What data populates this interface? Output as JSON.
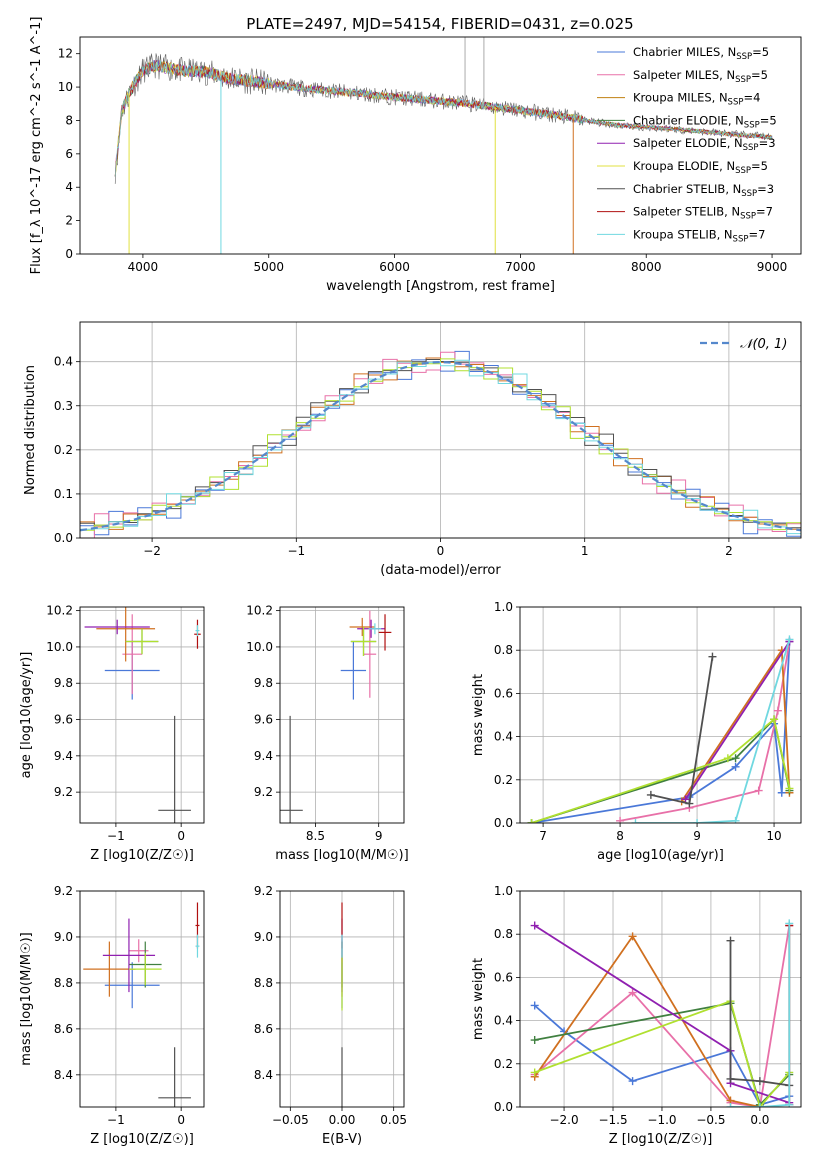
{
  "chart_data": [
    {
      "id": "spectrum",
      "type": "line",
      "title": "PLATE=2497, MJD=54154, FIBERID=0431, z=0.025",
      "xlabel": "wavelength [Angstrom, rest frame]",
      "ylabel": "Flux [f_λ 10^-17 erg cm^-2 s^-1 A^-1]",
      "xlim": [
        3500,
        9230
      ],
      "ylim": [
        0,
        13
      ],
      "xticks": [
        4000,
        5000,
        6000,
        7000,
        8000,
        9000
      ],
      "yticks": [
        0,
        2,
        4,
        6,
        8,
        10,
        12
      ],
      "legend_position": "top-right",
      "legend": [
        {
          "base": "Chabrier MILES, N",
          "sub": "SSP",
          "tail": "=5",
          "color": "#4a78d8"
        },
        {
          "base": "Salpeter MILES, N",
          "sub": "SSP",
          "tail": "=5",
          "color": "#e870a8"
        },
        {
          "base": "Kroupa MILES, N",
          "sub": "SSP",
          "tail": "=4",
          "color": "#c08010"
        },
        {
          "base": "Chabrier ELODIE, N",
          "sub": "SSP",
          "tail": "=5",
          "color": "#408040"
        },
        {
          "base": "Salpeter ELODIE, N",
          "sub": "SSP",
          "tail": "=3",
          "color": "#9020b0"
        },
        {
          "base": "Kroupa ELODIE, N",
          "sub": "SSP",
          "tail": "=5",
          "color": "#e0e040"
        },
        {
          "base": "Chabrier STELIB, N",
          "sub": "SSP",
          "tail": "=3",
          "color": "#505050"
        },
        {
          "base": "Salpeter STELIB, N",
          "sub": "SSP",
          "tail": "=7",
          "color": "#b01010"
        },
        {
          "base": "Kroupa STELIB, N",
          "sub": "SSP",
          "tail": "=7",
          "color": "#70d8e0"
        }
      ],
      "continuum": {
        "x": [
          3800,
          3900,
          4000,
          4100,
          4300,
          4500,
          4700,
          5000,
          5300,
          5600,
          6000,
          6300,
          6600,
          7000,
          7300,
          7600,
          7800,
          8000,
          8200,
          8500,
          8800,
          9000
        ],
        "y": [
          8.0,
          9.8,
          11.0,
          11.3,
          11.0,
          10.9,
          10.5,
          10.2,
          9.9,
          9.7,
          9.4,
          9.2,
          9.0,
          8.6,
          8.3,
          7.9,
          7.7,
          7.6,
          7.5,
          7.3,
          7.1,
          7.0
        ]
      },
      "features": [
        {
          "x": 4620,
          "y": 0.0,
          "color": "#70d8e0"
        },
        {
          "x": 3890,
          "y": 0.0,
          "color": "#e0e040"
        },
        {
          "x": 6800,
          "y": 0.0,
          "color": "#e0e040"
        },
        {
          "x": 7420,
          "y": 0.0,
          "color": "#d07020"
        },
        {
          "x": 6710,
          "y": 13.0,
          "color": "#aaaaaa"
        },
        {
          "x": 6560,
          "y": 13.0,
          "color": "#aaaaaa"
        }
      ]
    },
    {
      "id": "residuals",
      "type": "bar",
      "xlabel": "(data-model)/error",
      "ylabel": "Normed distribution",
      "xlim": [
        -2.5,
        2.5
      ],
      "ylim": [
        0,
        0.49
      ],
      "xticks": [
        -2,
        -1,
        0,
        1,
        2
      ],
      "yticks": [
        0.0,
        0.1,
        0.2,
        0.3,
        0.4
      ],
      "bin_width": 0.1,
      "legend_label": "𝒩(0, 1)",
      "series": [
        {
          "color": "#4a78d8",
          "offsets": [
            0.01,
            -0.02,
            0.03,
            -0.01,
            0.02,
            0.0,
            -0.03,
            0.01
          ]
        },
        {
          "color": "#e870a8",
          "offsets": [
            -0.02,
            0.03,
            0.0,
            0.02,
            -0.01,
            0.03,
            0.01,
            -0.02
          ]
        },
        {
          "color": "#d07020",
          "offsets": [
            0.02,
            0.0,
            -0.02,
            0.03,
            0.01,
            -0.02,
            0.02,
            0.0
          ]
        },
        {
          "color": "#505050",
          "offsets": [
            0.03,
            0.01,
            0.02,
            -0.02,
            0.03,
            0.01,
            -0.02,
            0.02
          ]
        },
        {
          "color": "#b0e030",
          "offsets": [
            -0.01,
            0.02,
            -0.03,
            0.0,
            -0.02,
            0.03,
            0.0,
            0.01
          ]
        },
        {
          "color": "#70d8e0",
          "offsets": [
            0.0,
            -0.01,
            0.01,
            -0.02,
            0.0,
            -0.01,
            0.03,
            -0.01
          ]
        }
      ]
    },
    {
      "id": "age_vs_Z",
      "type": "scatter",
      "xlabel": "Z [log10(Z/Z☉)]",
      "ylabel": "age  [log10(age/yr)]",
      "xlim": [
        -1.55,
        0.35
      ],
      "ylim": [
        9.03,
        10.22
      ],
      "xticks": [
        -1,
        0
      ],
      "yticks": [
        9.2,
        9.4,
        9.6,
        9.8,
        10.0,
        10.2
      ],
      "points": [
        {
          "x": -0.75,
          "y": 9.87,
          "xerr": 0.42,
          "yerr": 0.16,
          "color": "#4a78d8"
        },
        {
          "x": -0.75,
          "y": 9.96,
          "xerr": 0.15,
          "yerr": 0.22,
          "color": "#e870a8"
        },
        {
          "x": -0.85,
          "y": 10.1,
          "xerr": 0.45,
          "yerr": 0.18,
          "color": "#d07020"
        },
        {
          "x": -0.6,
          "y": 10.03,
          "xerr": 0.25,
          "yerr": 0.07,
          "color": "#408040"
        },
        {
          "x": -0.98,
          "y": 10.11,
          "xerr": 0.5,
          "yerr": 0.04,
          "color": "#9020b0"
        },
        {
          "x": -0.6,
          "y": 10.03,
          "xerr": 0.25,
          "yerr": 0.07,
          "color": "#b0e030"
        },
        {
          "x": -0.1,
          "y": 9.1,
          "xerr": 0.25,
          "yerr": 0.52,
          "color": "#505050"
        },
        {
          "x": 0.25,
          "y": 10.07,
          "xerr": 0.05,
          "yerr": 0.08,
          "color": "#b01010"
        },
        {
          "x": 0.25,
          "y": 10.09,
          "xerr": 0.03,
          "yerr": 0.03,
          "color": "#70d8e0"
        }
      ]
    },
    {
      "id": "age_vs_mass",
      "type": "scatter",
      "xlabel": "mass [log10(M/M☉)]",
      "ylabel": "",
      "xlim": [
        8.22,
        9.2
      ],
      "ylim": [
        9.03,
        10.22
      ],
      "xticks": [
        8.5,
        9.0
      ],
      "yticks": [
        9.2,
        9.4,
        9.6,
        9.8,
        10.0,
        10.2
      ],
      "points": [
        {
          "x": 8.8,
          "y": 9.87,
          "xerr": 0.1,
          "yerr": 0.16,
          "color": "#4a78d8"
        },
        {
          "x": 8.93,
          "y": 9.96,
          "xerr": 0.05,
          "yerr": 0.24,
          "color": "#e870a8"
        },
        {
          "x": 8.87,
          "y": 10.11,
          "xerr": 0.1,
          "yerr": 0.05,
          "color": "#d07020"
        },
        {
          "x": 8.88,
          "y": 10.03,
          "xerr": 0.1,
          "yerr": 0.08,
          "color": "#408040"
        },
        {
          "x": 8.94,
          "y": 10.1,
          "xerr": 0.11,
          "yerr": 0.05,
          "color": "#9020b0"
        },
        {
          "x": 8.88,
          "y": 10.03,
          "xerr": 0.1,
          "yerr": 0.08,
          "color": "#b0e030"
        },
        {
          "x": 8.3,
          "y": 9.1,
          "xerr": 0.1,
          "yerr": 0.52,
          "color": "#505050"
        },
        {
          "x": 9.05,
          "y": 10.08,
          "xerr": 0.05,
          "yerr": 0.1,
          "color": "#b01010"
        },
        {
          "x": 8.97,
          "y": 10.1,
          "xerr": 0.05,
          "yerr": 0.03,
          "color": "#70d8e0"
        }
      ]
    },
    {
      "id": "massweight_vs_age",
      "type": "line",
      "xlabel": "age  [log10(age/yr)]",
      "ylabel": "mass weight",
      "xlim": [
        6.7,
        10.35
      ],
      "ylim": [
        0,
        1
      ],
      "xticks": [
        7,
        8,
        9,
        10
      ],
      "yticks": [
        0.0,
        0.2,
        0.4,
        0.6,
        0.8,
        1.0
      ],
      "series": [
        {
          "color": "#4a78d8",
          "x": [
            6.85,
            8.9,
            9.5,
            10.0,
            10.1,
            10.2
          ],
          "y": [
            0.0,
            0.12,
            0.26,
            0.46,
            0.14,
            0.84
          ]
        },
        {
          "color": "#e870a8",
          "x": [
            8.0,
            8.9,
            9.8,
            10.05,
            10.2
          ],
          "y": [
            0.01,
            0.07,
            0.15,
            0.52,
            0.84
          ]
        },
        {
          "color": "#d07020",
          "x": [
            8.8,
            10.1,
            10.2
          ],
          "y": [
            0.1,
            0.8,
            0.14
          ]
        },
        {
          "color": "#408040",
          "x": [
            6.85,
            9.5,
            10.0,
            10.2
          ],
          "y": [
            0.0,
            0.3,
            0.48,
            0.15
          ]
        },
        {
          "color": "#9020b0",
          "x": [
            8.85,
            10.2
          ],
          "y": [
            0.11,
            0.84
          ]
        },
        {
          "color": "#b0e030",
          "x": [
            6.85,
            9.4,
            10.0,
            10.2
          ],
          "y": [
            0.0,
            0.3,
            0.48,
            0.16
          ]
        },
        {
          "color": "#505050",
          "x": [
            8.4,
            8.9,
            9.2
          ],
          "y": [
            0.13,
            0.09,
            0.77
          ]
        },
        {
          "color": "#70d8e0",
          "x": [
            8.2,
            9.0,
            9.5,
            10.2
          ],
          "y": [
            0.0,
            0.0,
            0.01,
            0.85
          ]
        }
      ]
    },
    {
      "id": "mass_vs_Z",
      "type": "scatter",
      "xlabel": "Z [log10(Z/Z☉)]",
      "ylabel": "mass [log10(M/M☉)]",
      "xlim": [
        -1.55,
        0.35
      ],
      "ylim": [
        8.26,
        9.2
      ],
      "xticks": [
        -1,
        0
      ],
      "yticks": [
        8.4,
        8.6,
        8.8,
        9.0,
        9.2
      ],
      "points": [
        {
          "x": -0.75,
          "y": 8.79,
          "xerr": 0.42,
          "yerr": 0.1,
          "color": "#4a78d8"
        },
        {
          "x": -0.65,
          "y": 8.94,
          "xerr": 0.15,
          "yerr": 0.05,
          "color": "#e870a8"
        },
        {
          "x": -1.1,
          "y": 8.86,
          "xerr": 0.4,
          "yerr": 0.12,
          "color": "#d07020"
        },
        {
          "x": -0.55,
          "y": 8.88,
          "xerr": 0.25,
          "yerr": 0.1,
          "color": "#408040"
        },
        {
          "x": -0.8,
          "y": 8.92,
          "xerr": 0.4,
          "yerr": 0.16,
          "color": "#9020b0"
        },
        {
          "x": -0.55,
          "y": 8.86,
          "xerr": 0.25,
          "yerr": 0.07,
          "color": "#b0e030"
        },
        {
          "x": -0.1,
          "y": 8.3,
          "xerr": 0.25,
          "yerr": 0.22,
          "color": "#505050"
        },
        {
          "x": 0.25,
          "y": 9.05,
          "xerr": 0.03,
          "yerr": 0.1,
          "color": "#b01010"
        },
        {
          "x": 0.25,
          "y": 8.96,
          "xerr": 0.03,
          "yerr": 0.05,
          "color": "#70d8e0"
        }
      ]
    },
    {
      "id": "mass_vs_ebv",
      "type": "scatter",
      "xlabel": "E(B-V)",
      "ylabel": "",
      "xlim": [
        -0.06,
        0.06
      ],
      "ylim": [
        8.26,
        9.2
      ],
      "xticks": [
        -0.05,
        0.0,
        0.05
      ],
      "xtick_labels": [
        "−0.05",
        "0.00",
        "0.05"
      ],
      "yticks": [
        8.4,
        8.6,
        8.8,
        9.0,
        9.2
      ],
      "points": [
        {
          "x": 0.0,
          "y": 8.79,
          "xerr": 0.0,
          "yerr": 0.1,
          "color": "#4a78d8"
        },
        {
          "x": 0.0,
          "y": 8.94,
          "xerr": 0.0,
          "yerr": 0.05,
          "color": "#e870a8"
        },
        {
          "x": 0.0,
          "y": 8.86,
          "xerr": 0.0,
          "yerr": 0.12,
          "color": "#d07020"
        },
        {
          "x": 0.0,
          "y": 8.88,
          "xerr": 0.0,
          "yerr": 0.1,
          "color": "#408040"
        },
        {
          "x": 0.0,
          "y": 8.92,
          "xerr": 0.0,
          "yerr": 0.16,
          "color": "#9020b0"
        },
        {
          "x": 0.0,
          "y": 8.8,
          "xerr": 0.0,
          "yerr": 0.12,
          "color": "#b0e030"
        },
        {
          "x": 0.0,
          "y": 8.3,
          "xerr": 0.0,
          "yerr": 0.22,
          "color": "#505050"
        },
        {
          "x": 0.0,
          "y": 9.05,
          "xerr": 0.0,
          "yerr": 0.1,
          "color": "#b01010"
        },
        {
          "x": 0.0,
          "y": 8.96,
          "xerr": 0.0,
          "yerr": 0.05,
          "color": "#70d8e0"
        }
      ]
    },
    {
      "id": "massweight_vs_Z",
      "type": "line",
      "xlabel": "Z [log10(Z/Z☉)]",
      "ylabel": "mass weight",
      "xlim": [
        -2.45,
        0.42
      ],
      "ylim": [
        0,
        1
      ],
      "xticks": [
        -2.0,
        -1.5,
        -1.0,
        -0.5,
        0.0
      ],
      "xtick_labels": [
        "−2.0",
        "−1.5",
        "−1.0",
        "−0.5",
        "0.0"
      ],
      "yticks": [
        0.0,
        0.2,
        0.4,
        0.6,
        0.8,
        1.0
      ],
      "series": [
        {
          "color": "#4a78d8",
          "x": [
            -2.3,
            -2.0,
            -1.3,
            -0.3,
            0.0,
            0.3
          ],
          "y": [
            0.47,
            0.35,
            0.12,
            0.26,
            0.01,
            0.05
          ]
        },
        {
          "color": "#e870a8",
          "x": [
            -2.3,
            -1.3,
            -0.3,
            0.0,
            0.3
          ],
          "y": [
            0.15,
            0.53,
            0.02,
            0.0,
            0.84
          ]
        },
        {
          "color": "#d07020",
          "x": [
            -2.3,
            -1.3,
            -0.3,
            0.0
          ],
          "y": [
            0.14,
            0.79,
            0.03,
            0.0
          ]
        },
        {
          "color": "#408040",
          "x": [
            -2.3,
            -0.3,
            0.0,
            0.3
          ],
          "y": [
            0.31,
            0.48,
            0.01,
            0.15
          ]
        },
        {
          "color": "#9020b0",
          "x": [
            -2.3,
            -0.3,
            -0.3,
            0.3
          ],
          "y": [
            0.84,
            0.26,
            0.11,
            0.02
          ]
        },
        {
          "color": "#b0e030",
          "x": [
            -2.3,
            -0.3,
            0.0,
            0.3
          ],
          "y": [
            0.16,
            0.49,
            0.0,
            0.16
          ]
        },
        {
          "color": "#505050",
          "x": [
            -0.3,
            -0.3,
            0.0,
            0.3
          ],
          "y": [
            0.77,
            0.13,
            0.12,
            0.1
          ]
        },
        {
          "color": "#b01010",
          "x": [
            0.3,
            0.3
          ],
          "y": [
            0.01,
            0.84
          ]
        },
        {
          "color": "#70d8e0",
          "x": [
            -0.3,
            0.0,
            0.3,
            0.3
          ],
          "y": [
            0.0,
            0.0,
            0.01,
            0.85
          ]
        }
      ]
    }
  ]
}
